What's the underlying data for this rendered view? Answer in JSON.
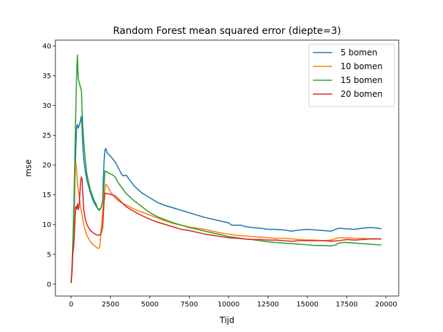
{
  "chart_data": {
    "type": "line",
    "title": "Random Forest mean squared error (diepte=3)",
    "xlabel": "Tijd",
    "ylabel": "mse",
    "xlim": [
      -1000,
      20800
    ],
    "ylim": [
      -2,
      41
    ],
    "xticks": [
      0,
      2500,
      5000,
      7500,
      10000,
      12500,
      15000,
      17500,
      20000
    ],
    "yticks": [
      0,
      5,
      10,
      15,
      20,
      25,
      30,
      35,
      40
    ],
    "grid": false,
    "legend_position": "top-right",
    "series": [
      {
        "name": "5 bomen",
        "color": "#1f77b4",
        "points": [
          [
            0,
            0.3
          ],
          [
            50,
            2
          ],
          [
            100,
            5
          ],
          [
            150,
            8
          ],
          [
            200,
            12
          ],
          [
            250,
            18
          ],
          [
            300,
            23
          ],
          [
            350,
            26.5
          ],
          [
            400,
            26.8
          ],
          [
            450,
            26.2
          ],
          [
            500,
            26.6
          ],
          [
            550,
            27
          ],
          [
            600,
            27.5
          ],
          [
            650,
            28.2
          ],
          [
            700,
            26
          ],
          [
            750,
            23
          ],
          [
            800,
            21
          ],
          [
            900,
            19
          ],
          [
            1000,
            17.5
          ],
          [
            1200,
            15.5
          ],
          [
            1400,
            14
          ],
          [
            1600,
            13
          ],
          [
            1800,
            12.5
          ],
          [
            1900,
            12.8
          ],
          [
            2000,
            14
          ],
          [
            2050,
            18
          ],
          [
            2100,
            21
          ],
          [
            2150,
            22.5
          ],
          [
            2200,
            22.8
          ],
          [
            2300,
            22
          ],
          [
            2500,
            21.5
          ],
          [
            2800,
            20.5
          ],
          [
            3000,
            19.5
          ],
          [
            3200,
            18.5
          ],
          [
            3300,
            18.2
          ],
          [
            3500,
            18.3
          ],
          [
            3800,
            17.2
          ],
          [
            4000,
            16.5
          ],
          [
            4500,
            15.3
          ],
          [
            5000,
            14.5
          ],
          [
            5500,
            13.7
          ],
          [
            6000,
            13.2
          ],
          [
            6500,
            12.8
          ],
          [
            7000,
            12.4
          ],
          [
            7500,
            12
          ],
          [
            8000,
            11.6
          ],
          [
            8500,
            11.2
          ],
          [
            9000,
            10.9
          ],
          [
            9500,
            10.6
          ],
          [
            10000,
            10.3
          ],
          [
            10200,
            9.9
          ],
          [
            10500,
            9.9
          ],
          [
            10800,
            9.9
          ],
          [
            11000,
            9.7
          ],
          [
            11500,
            9.5
          ],
          [
            12000,
            9.4
          ],
          [
            12500,
            9.2
          ],
          [
            13000,
            9.2
          ],
          [
            13500,
            9.1
          ],
          [
            14000,
            8.9
          ],
          [
            14500,
            9.1
          ],
          [
            15000,
            9.2
          ],
          [
            15500,
            9.1
          ],
          [
            16000,
            9
          ],
          [
            16500,
            8.9
          ],
          [
            17000,
            9.4
          ],
          [
            17500,
            9.3
          ],
          [
            18000,
            9.2
          ],
          [
            18500,
            9.4
          ],
          [
            19000,
            9.5
          ],
          [
            19500,
            9.4
          ],
          [
            19700,
            9.3
          ]
        ]
      },
      {
        "name": "10 bomen",
        "color": "#ff7f0e",
        "points": [
          [
            0,
            0.2
          ],
          [
            80,
            3
          ],
          [
            150,
            8
          ],
          [
            200,
            14
          ],
          [
            250,
            19
          ],
          [
            300,
            20.5
          ],
          [
            350,
            19
          ],
          [
            400,
            17
          ],
          [
            450,
            16
          ],
          [
            500,
            15
          ],
          [
            600,
            13
          ],
          [
            700,
            11.5
          ],
          [
            800,
            10
          ],
          [
            900,
            9
          ],
          [
            1000,
            8.2
          ],
          [
            1200,
            7.2
          ],
          [
            1400,
            6.6
          ],
          [
            1600,
            6.2
          ],
          [
            1700,
            6
          ],
          [
            1800,
            6.1
          ],
          [
            1850,
            7
          ],
          [
            1900,
            9
          ],
          [
            2000,
            12
          ],
          [
            2100,
            15
          ],
          [
            2200,
            16.8
          ],
          [
            2300,
            16.5
          ],
          [
            2500,
            15.5
          ],
          [
            2800,
            14.5
          ],
          [
            3000,
            14
          ],
          [
            3300,
            13.5
          ],
          [
            3500,
            13.3
          ],
          [
            4000,
            12.6
          ],
          [
            4500,
            12.1
          ],
          [
            5000,
            11.6
          ],
          [
            5500,
            11.1
          ],
          [
            6000,
            10.6
          ],
          [
            6500,
            10.2
          ],
          [
            7000,
            9.9
          ],
          [
            7500,
            9.6
          ],
          [
            8000,
            9.4
          ],
          [
            8500,
            9.2
          ],
          [
            9000,
            8.9
          ],
          [
            9500,
            8.6
          ],
          [
            10000,
            8.4
          ],
          [
            10500,
            8.2
          ],
          [
            11000,
            8.1
          ],
          [
            11500,
            8
          ],
          [
            12000,
            7.9
          ],
          [
            12500,
            7.8
          ],
          [
            13000,
            7.7
          ],
          [
            13500,
            7.7
          ],
          [
            14000,
            7.6
          ],
          [
            14500,
            7.5
          ],
          [
            15000,
            7.4
          ],
          [
            15500,
            7.4
          ],
          [
            16000,
            7.3
          ],
          [
            16500,
            7.4
          ],
          [
            17000,
            7.8
          ],
          [
            17500,
            7.8
          ],
          [
            18000,
            7.7
          ],
          [
            18500,
            7.7
          ],
          [
            19000,
            7.6
          ],
          [
            19500,
            7.6
          ],
          [
            19700,
            7.6
          ]
        ]
      },
      {
        "name": "15 bomen",
        "color": "#2ca02c",
        "points": [
          [
            0,
            0.2
          ],
          [
            60,
            3
          ],
          [
            120,
            8
          ],
          [
            180,
            14
          ],
          [
            230,
            20
          ],
          [
            280,
            27
          ],
          [
            330,
            33
          ],
          [
            370,
            37
          ],
          [
            400,
            38.5
          ],
          [
            420,
            37
          ],
          [
            440,
            35
          ],
          [
            460,
            34.5
          ],
          [
            500,
            34
          ],
          [
            550,
            33.5
          ],
          [
            600,
            33
          ],
          [
            650,
            32.5
          ],
          [
            700,
            29
          ],
          [
            750,
            26
          ],
          [
            800,
            24
          ],
          [
            900,
            21
          ],
          [
            1000,
            18.5
          ],
          [
            1200,
            16
          ],
          [
            1400,
            14.5
          ],
          [
            1600,
            13.3
          ],
          [
            1700,
            12.6
          ],
          [
            1800,
            12.4
          ],
          [
            1900,
            12.8
          ],
          [
            2000,
            14
          ],
          [
            2100,
            17
          ],
          [
            2150,
            19
          ],
          [
            2200,
            19
          ],
          [
            2400,
            18.6
          ],
          [
            2600,
            18.4
          ],
          [
            2800,
            18
          ],
          [
            3000,
            17
          ],
          [
            3500,
            15.2
          ],
          [
            4000,
            14
          ],
          [
            4500,
            13
          ],
          [
            5000,
            12
          ],
          [
            5500,
            11.3
          ],
          [
            6000,
            10.8
          ],
          [
            6500,
            10.3
          ],
          [
            7000,
            9.9
          ],
          [
            7500,
            9.5
          ],
          [
            8000,
            9.2
          ],
          [
            8500,
            8.9
          ],
          [
            9000,
            8.6
          ],
          [
            9500,
            8.3
          ],
          [
            10000,
            8
          ],
          [
            10500,
            7.8
          ],
          [
            11000,
            7.6
          ],
          [
            11500,
            7.5
          ],
          [
            12000,
            7.3
          ],
          [
            12500,
            7.1
          ],
          [
            13000,
            7
          ],
          [
            13500,
            6.9
          ],
          [
            14000,
            6.8
          ],
          [
            14500,
            6.7
          ],
          [
            15000,
            6.6
          ],
          [
            15500,
            6.5
          ],
          [
            16000,
            6.5
          ],
          [
            16500,
            6.4
          ],
          [
            16800,
            6.6
          ],
          [
            17000,
            6.9
          ],
          [
            17300,
            7
          ],
          [
            17500,
            7
          ],
          [
            18000,
            6.9
          ],
          [
            18500,
            6.8
          ],
          [
            19000,
            6.7
          ],
          [
            19500,
            6.6
          ],
          [
            19700,
            6.6
          ]
        ]
      },
      {
        "name": "20 bomen",
        "color": "#d62728",
        "points": [
          [
            0,
            0.2
          ],
          [
            50,
            2
          ],
          [
            100,
            5
          ],
          [
            150,
            6
          ],
          [
            200,
            8
          ],
          [
            250,
            11
          ],
          [
            300,
            13
          ],
          [
            350,
            12.6
          ],
          [
            400,
            13.5
          ],
          [
            450,
            12.5
          ],
          [
            500,
            13
          ],
          [
            550,
            15
          ],
          [
            600,
            17
          ],
          [
            650,
            18
          ],
          [
            700,
            17.5
          ],
          [
            750,
            15
          ],
          [
            800,
            12.5
          ],
          [
            900,
            11
          ],
          [
            1000,
            10
          ],
          [
            1200,
            9.1
          ],
          [
            1400,
            8.6
          ],
          [
            1600,
            8.3
          ],
          [
            1800,
            8.2
          ],
          [
            1900,
            8.5
          ],
          [
            2000,
            9.5
          ],
          [
            2050,
            12
          ],
          [
            2100,
            14
          ],
          [
            2150,
            15.3
          ],
          [
            2300,
            15.2
          ],
          [
            2500,
            15.1
          ],
          [
            2800,
            14.8
          ],
          [
            3000,
            14.3
          ],
          [
            3300,
            13.5
          ],
          [
            3500,
            13
          ],
          [
            4000,
            12.2
          ],
          [
            4500,
            11.5
          ],
          [
            5000,
            10.9
          ],
          [
            5500,
            10.4
          ],
          [
            6000,
            10
          ],
          [
            6500,
            9.6
          ],
          [
            7000,
            9.2
          ],
          [
            7500,
            9
          ],
          [
            8000,
            8.7
          ],
          [
            8500,
            8.4
          ],
          [
            9000,
            8.2
          ],
          [
            9500,
            8
          ],
          [
            10000,
            7.8
          ],
          [
            10500,
            7.7
          ],
          [
            11000,
            7.6
          ],
          [
            11500,
            7.5
          ],
          [
            12000,
            7.5
          ],
          [
            12500,
            7.4
          ],
          [
            13000,
            7.4
          ],
          [
            13500,
            7.3
          ],
          [
            14000,
            7.2
          ],
          [
            14500,
            7.3
          ],
          [
            15000,
            7.3
          ],
          [
            15500,
            7.3
          ],
          [
            16000,
            7.3
          ],
          [
            16500,
            7.2
          ],
          [
            17000,
            7.3
          ],
          [
            17500,
            7.5
          ],
          [
            18000,
            7.4
          ],
          [
            18500,
            7.5
          ],
          [
            19000,
            7.6
          ],
          [
            19500,
            7.6
          ],
          [
            19700,
            7.6
          ]
        ]
      }
    ]
  }
}
